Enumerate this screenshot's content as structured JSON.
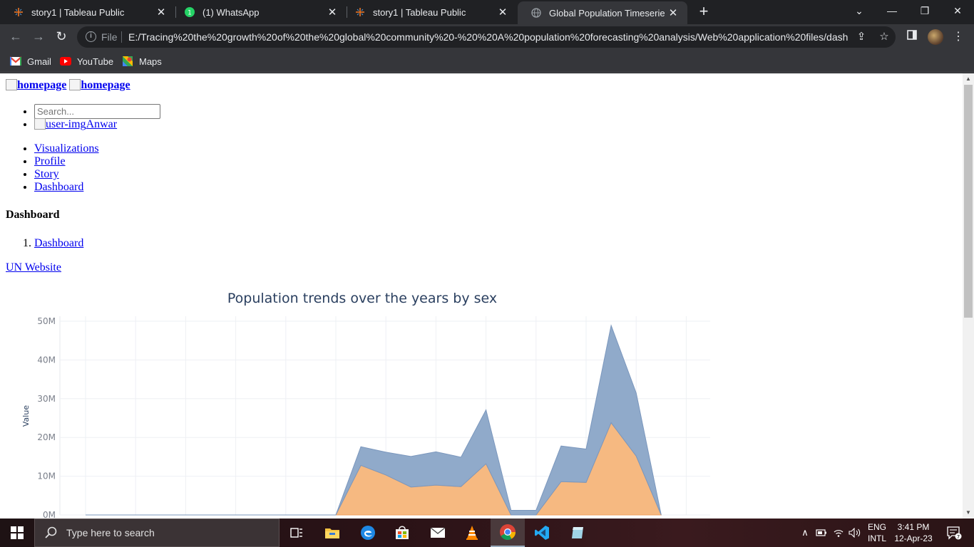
{
  "browser": {
    "tabs": [
      {
        "title": "story1 | Tableau Public",
        "icon": "tableau-icon"
      },
      {
        "title": "(1) WhatsApp",
        "icon": "whatsapp-icon"
      },
      {
        "title": "story1 | Tableau Public",
        "icon": "tableau-icon"
      },
      {
        "title": "Global Population Timeseries Ana",
        "icon": "globe-icon",
        "active": true
      }
    ],
    "address": {
      "scheme_label": "File",
      "url": "E:/Tracing%20the%20growth%20of%20the%20global%20community%20-%20%20A%20population%20forecasting%20analysis/Web%20application%20files/dash..."
    },
    "bookmarks": [
      {
        "label": "Gmail",
        "icon": "gmail-icon"
      },
      {
        "label": "YouTube",
        "icon": "youtube-icon"
      },
      {
        "label": "Maps",
        "icon": "maps-icon"
      }
    ]
  },
  "page": {
    "brand_alt_1": "homepage",
    "brand_alt_2": "homepage",
    "search_placeholder": "Search...",
    "user_img_alt": "user-img",
    "user_name": "Anwar",
    "nav": [
      "Visualizations",
      "Profile",
      "Story",
      "Dashboard"
    ],
    "heading": "Dashboard",
    "breadcrumb": [
      "Dashboard"
    ],
    "un_link": "UN Website"
  },
  "chart_data": {
    "type": "area",
    "title": "Population trends over the years by sex",
    "ylabel": "Value",
    "xlabel": "",
    "ylim": [
      0,
      50000000
    ],
    "yticks": [
      "0M",
      "10M",
      "20M",
      "30M",
      "40M",
      "50M"
    ],
    "ytick_values": [
      0,
      10000000,
      20000000,
      30000000,
      40000000,
      50000000
    ],
    "stacked": true,
    "series": [
      {
        "values": [
          0,
          0,
          0,
          0,
          0,
          0,
          0,
          0,
          0,
          0,
          0,
          12800000,
          10300000,
          7200000,
          7700000,
          7300000,
          13200000,
          0,
          0,
          8600000,
          8400000,
          23800000,
          15200000,
          0
        ],
        "color": "#f5b57a"
      },
      {
        "values": [
          0,
          0,
          0,
          0,
          0,
          0,
          0,
          0,
          0,
          0,
          0,
          4800000,
          5900000,
          7900000,
          8600000,
          7600000,
          13900000,
          1200000,
          1200000,
          9200000,
          8600000,
          25100000,
          16300000,
          0
        ],
        "color": "#8aa5c7"
      }
    ],
    "grid": true
  },
  "taskbar": {
    "search_placeholder": "Type here to search",
    "lang_1": "ENG",
    "lang_2": "INTL",
    "time": "3:41 PM",
    "date": "12-Apr-23",
    "notif_count": "7"
  }
}
